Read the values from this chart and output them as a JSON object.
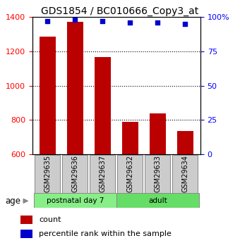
{
  "title": "GDS1854 / BC010666_Copy3_at",
  "samples": [
    "GSM29635",
    "GSM29636",
    "GSM29637",
    "GSM29632",
    "GSM29633",
    "GSM29634"
  ],
  "counts": [
    1285,
    1370,
    1165,
    790,
    840,
    735
  ],
  "percentiles": [
    97,
    98,
    97,
    96,
    96,
    95
  ],
  "groups": [
    {
      "label": "postnatal day 7",
      "color": "#88ee88"
    },
    {
      "label": "adult",
      "color": "#66dd66"
    }
  ],
  "age_label": "age",
  "ylim_left": [
    600,
    1400
  ],
  "ylim_right": [
    0,
    100
  ],
  "yticks_left": [
    600,
    800,
    1000,
    1200,
    1400
  ],
  "yticks_right": [
    0,
    25,
    50,
    75,
    100
  ],
  "ytick_labels_right": [
    "0",
    "25",
    "50",
    "75",
    "100%"
  ],
  "bar_color": "#bb0000",
  "dot_color": "#0000cc",
  "bar_width": 0.6,
  "legend_count_label": "count",
  "legend_pct_label": "percentile rank within the sample",
  "sample_box_color": "#cccccc",
  "title_fontsize": 10,
  "tick_fontsize": 8,
  "label_fontsize": 8
}
